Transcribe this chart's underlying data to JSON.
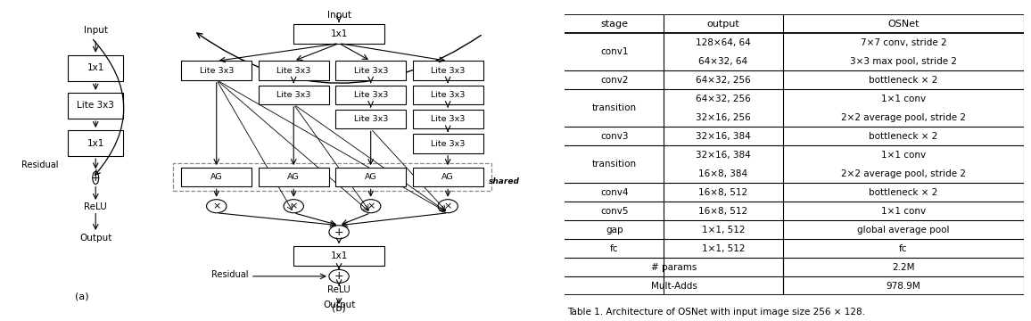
{
  "table_headers": [
    "stage",
    "output",
    "OSNet"
  ],
  "table_rows": [
    [
      "conv1",
      "128×64, 64\n64×32, 64",
      "7×7 conv, stride 2\n3×3 max pool, stride 2"
    ],
    [
      "conv2",
      "64×32, 256",
      "bottleneck × 2"
    ],
    [
      "transition",
      "64×32, 256\n32×16, 256",
      "1×1 conv\n2×2 average pool, stride 2"
    ],
    [
      "conv3",
      "32×16, 384",
      "bottleneck × 2"
    ],
    [
      "transition",
      "32×16, 384\n16×8, 384",
      "1×1 conv\n2×2 average pool, stride 2"
    ],
    [
      "conv4",
      "16×8, 512",
      "bottleneck × 2"
    ],
    [
      "conv5",
      "16×8, 512",
      "1×1 conv"
    ],
    [
      "gap",
      "1×1, 512",
      "global average pool"
    ],
    [
      "fc",
      "1×1, 512",
      "fc"
    ],
    [
      "# params",
      "",
      "2.2M"
    ],
    [
      "Mult-Adds",
      "",
      "978.9M"
    ]
  ],
  "caption": "Table 1. Architecture of OSNet with input image size 256 × 128.",
  "bg_color": "#ffffff",
  "text_color": "#000000"
}
